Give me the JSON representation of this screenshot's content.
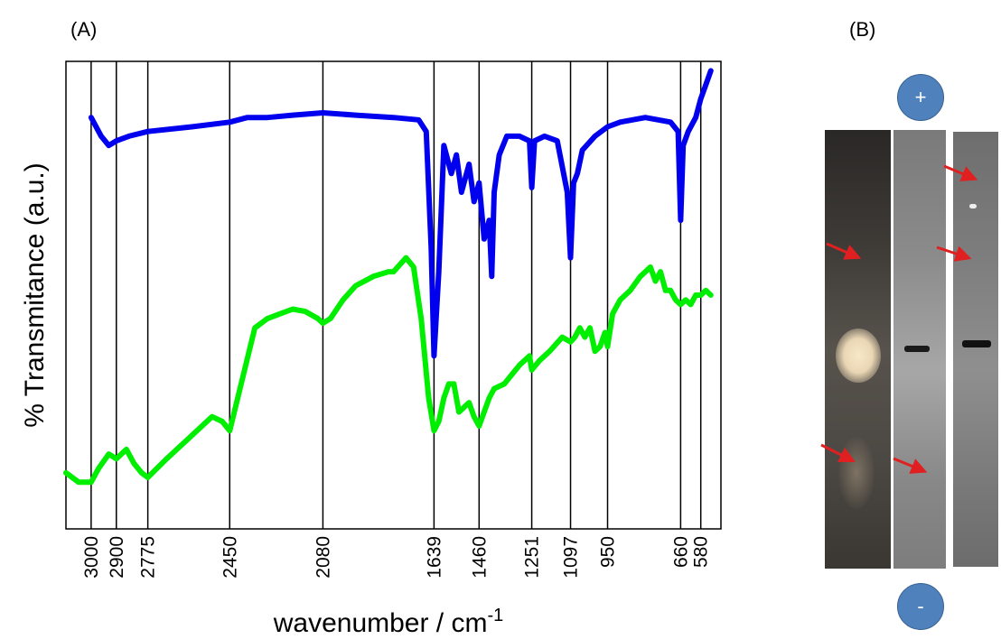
{
  "panels": {
    "a_label": "(A)",
    "b_label": "(B)"
  },
  "chart_data": {
    "type": "line",
    "xlabel": "wavenumber / cm",
    "xlabel_superscript": "-1",
    "ylabel": "% Transmitance (a.u.)",
    "x_reversed": true,
    "xlim": [
      3100,
      500
    ],
    "x_ticks": [
      3000,
      2900,
      2775,
      2450,
      2080,
      1639,
      1460,
      1251,
      1097,
      950,
      660,
      580
    ],
    "tick_labels": [
      "3000",
      "2900",
      "2775",
      "2450",
      "2080",
      "1639",
      "1460",
      "1251",
      "1097",
      "950",
      "660",
      "580"
    ],
    "ylim": [
      0,
      100
    ],
    "y_ticks_shown": false,
    "grid": "vertical lines at tick wavenumbers",
    "series": [
      {
        "color": "#0000ee",
        "x": [
          3000,
          2960,
          2930,
          2900,
          2850,
          2775,
          2600,
          2450,
          2380,
          2300,
          2200,
          2080,
          1950,
          1800,
          1700,
          1670,
          1650,
          1639,
          1620,
          1600,
          1570,
          1550,
          1530,
          1500,
          1480,
          1460,
          1440,
          1420,
          1410,
          1400,
          1380,
          1350,
          1300,
          1260,
          1251,
          1240,
          1200,
          1150,
          1110,
          1097,
          1085,
          1070,
          1050,
          1000,
          950,
          900,
          800,
          700,
          670,
          660,
          650,
          630,
          600,
          580,
          560,
          540
        ],
        "values": [
          88,
          84,
          82,
          83,
          84,
          85,
          86,
          87,
          88,
          88,
          88.5,
          89,
          88.5,
          88,
          87.5,
          85,
          60,
          37,
          55,
          82,
          76,
          80,
          72,
          78,
          70,
          74,
          62,
          66,
          54,
          72,
          80,
          84,
          84,
          83,
          73,
          83,
          84,
          83,
          72,
          58,
          74,
          76,
          81,
          84,
          86,
          87,
          88,
          87,
          85,
          66,
          82,
          85,
          88,
          92,
          95,
          98
        ]
      },
      {
        "color": "#00ee00",
        "x": [
          3100,
          3050,
          3000,
          2970,
          2930,
          2900,
          2860,
          2830,
          2800,
          2775,
          2700,
          2600,
          2520,
          2480,
          2450,
          2400,
          2350,
          2300,
          2250,
          2200,
          2150,
          2100,
          2080,
          2050,
          2000,
          1950,
          1880,
          1820,
          1800,
          1750,
          1720,
          1690,
          1660,
          1639,
          1620,
          1600,
          1580,
          1560,
          1540,
          1520,
          1500,
          1480,
          1460,
          1440,
          1420,
          1400,
          1360,
          1300,
          1260,
          1251,
          1220,
          1180,
          1130,
          1097,
          1080,
          1060,
          1040,
          1020,
          1000,
          980,
          960,
          950,
          930,
          900,
          860,
          820,
          780,
          760,
          740,
          720,
          700,
          680,
          660,
          640,
          620,
          600,
          580,
          560,
          540
        ],
        "values": [
          12,
          10,
          10,
          13,
          16,
          15,
          17,
          14,
          12,
          11,
          15,
          20,
          24,
          23,
          21,
          32,
          43,
          45,
          46,
          47,
          46.5,
          45,
          44,
          45,
          49,
          52,
          54,
          55,
          55,
          58,
          56,
          45,
          28,
          21,
          23,
          28,
          31,
          31,
          25,
          26,
          27,
          24,
          22,
          25,
          28,
          30,
          31,
          35,
          37,
          34,
          36,
          38,
          41,
          40,
          41,
          43,
          41,
          43,
          38,
          39,
          42,
          39,
          46,
          49,
          51,
          54,
          56,
          53,
          55,
          51,
          51,
          49,
          48,
          49,
          48,
          50,
          50,
          51,
          50
        ]
      }
    ]
  },
  "electrophoresis": {
    "plus_label": "+",
    "minus_label": "-",
    "lanes": 3,
    "arrow_color": "#e02020"
  }
}
